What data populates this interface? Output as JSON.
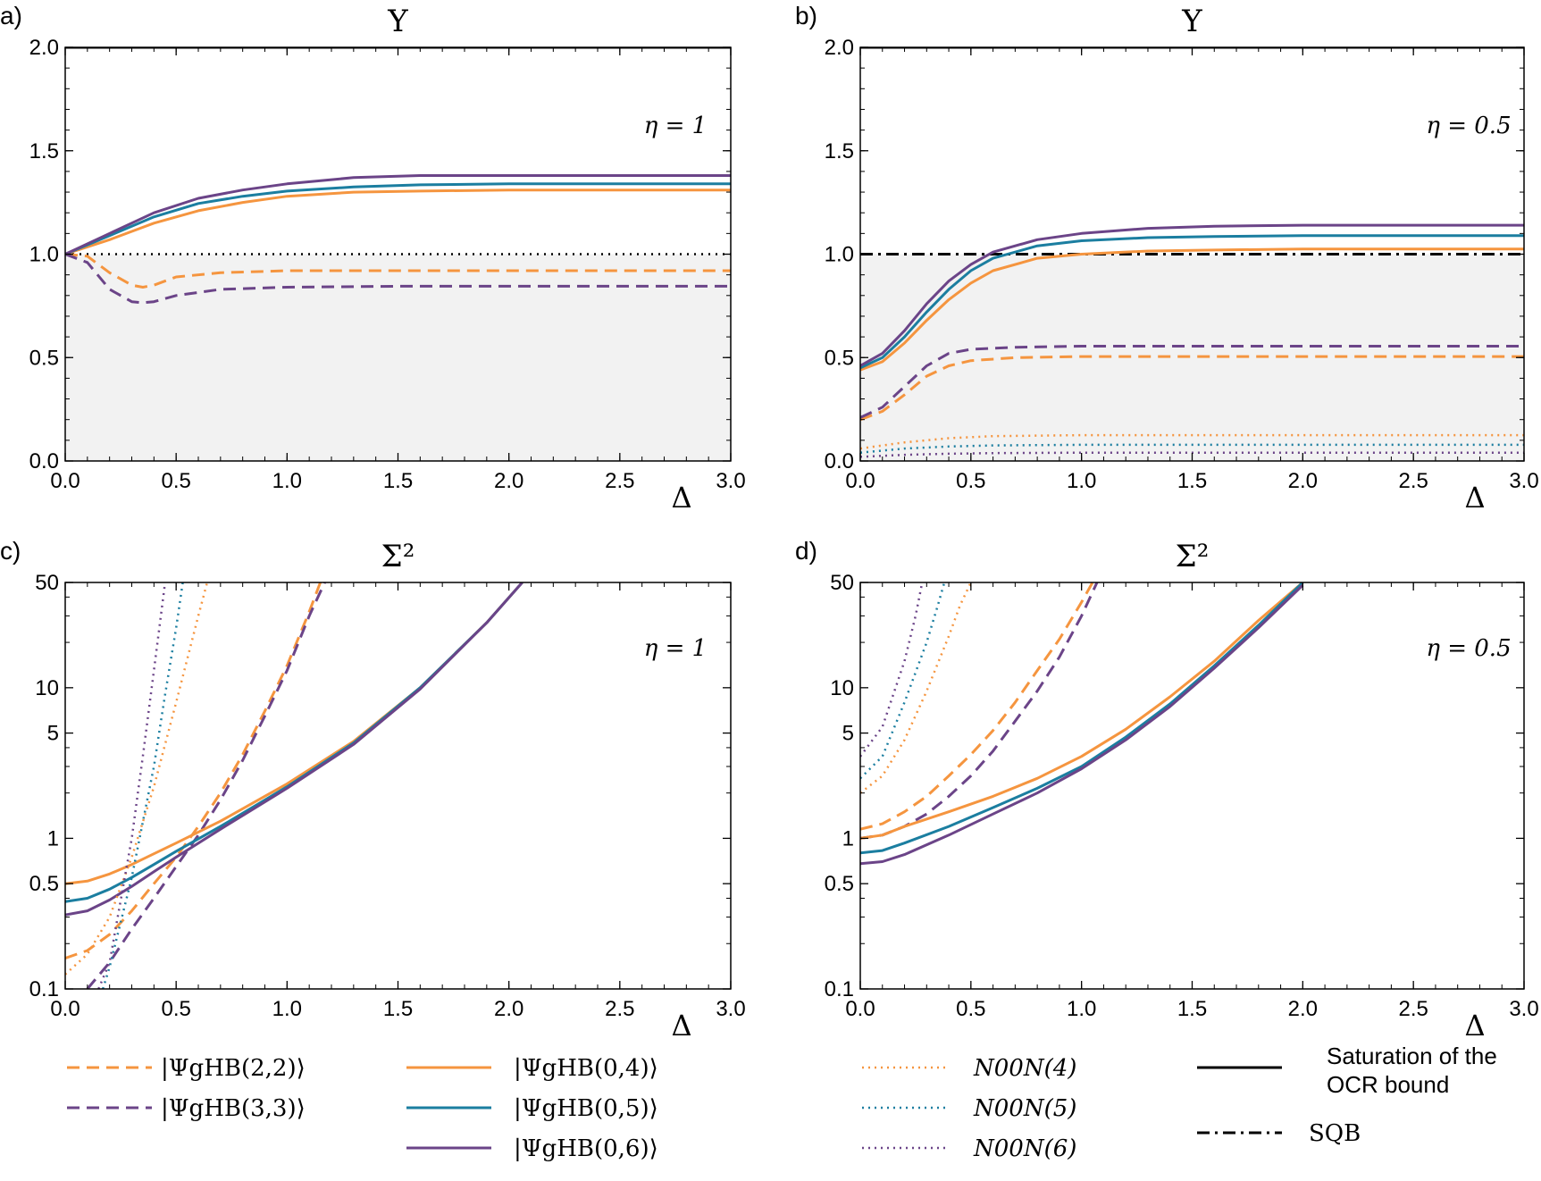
{
  "colors": {
    "orange": "#F5953F",
    "teal": "#1B7EA0",
    "purple": "#6B4488",
    "black": "#000000",
    "shade": "#F2F2F2"
  },
  "legend": {
    "items": [
      {
        "label": "|ΨgHB(2,2)⟩",
        "color": "orange",
        "style": "dashed"
      },
      {
        "label": "|ΨgHB(3,3)⟩",
        "color": "purple",
        "style": "dashed"
      },
      {
        "label": "|ΨgHB(0,4)⟩",
        "color": "orange",
        "style": "solid"
      },
      {
        "label": "|ΨgHB(0,5)⟩",
        "color": "teal",
        "style": "solid"
      },
      {
        "label": "|ΨgHB(0,6)⟩",
        "color": "purple",
        "style": "solid"
      },
      {
        "label": "N00N(4)",
        "color": "orange",
        "style": "dotted"
      },
      {
        "label": "N00N(5)",
        "color": "teal",
        "style": "dotted"
      },
      {
        "label": "N00N(6)",
        "color": "purple",
        "style": "dotted"
      },
      {
        "label": "Saturation of the OCR bound",
        "color": "black",
        "style": "solid"
      },
      {
        "label": "SQB",
        "color": "black",
        "style": "dashdot"
      }
    ]
  },
  "chart_data": [
    {
      "panel": "a)",
      "type": "line",
      "title": "Υ",
      "annotation": "η = 1",
      "xlabel": "Δ",
      "xlim": [
        0,
        3
      ],
      "ylim": [
        0,
        2.0
      ],
      "yscale": "linear",
      "xticks": [
        "0.0",
        "0.5",
        "1.0",
        "1.5",
        "2.0",
        "2.5",
        "3.0"
      ],
      "yticks": [
        "0.0",
        "0.5",
        "1.0",
        "1.5",
        "2.0"
      ],
      "shaded_region_y": [
        0,
        1.0
      ],
      "hlines": [
        {
          "y": 2.0,
          "color": "black",
          "style": "solid"
        },
        {
          "y": 1.0,
          "color": "black",
          "style": "dotted"
        }
      ],
      "series": [
        {
          "legend": 0,
          "x": [
            0,
            0.1,
            0.2,
            0.3,
            0.35,
            0.4,
            0.5,
            0.7,
            1.0,
            1.5,
            2.0,
            3.0
          ],
          "y": [
            1.0,
            0.99,
            0.91,
            0.85,
            0.84,
            0.85,
            0.89,
            0.91,
            0.92,
            0.92,
            0.92,
            0.92
          ]
        },
        {
          "legend": 1,
          "x": [
            0,
            0.1,
            0.2,
            0.3,
            0.35,
            0.4,
            0.5,
            0.7,
            1.0,
            1.5,
            2.0,
            3.0
          ],
          "y": [
            1.0,
            0.96,
            0.83,
            0.77,
            0.765,
            0.77,
            0.8,
            0.83,
            0.84,
            0.845,
            0.845,
            0.845
          ]
        },
        {
          "legend": 2,
          "x": [
            0,
            0.2,
            0.4,
            0.6,
            0.8,
            1.0,
            1.3,
            1.6,
            2.0,
            3.0
          ],
          "y": [
            1.0,
            1.07,
            1.15,
            1.21,
            1.25,
            1.28,
            1.3,
            1.305,
            1.31,
            1.31
          ]
        },
        {
          "legend": 3,
          "x": [
            0,
            0.2,
            0.4,
            0.6,
            0.8,
            1.0,
            1.3,
            1.6,
            2.0,
            3.0
          ],
          "y": [
            1.0,
            1.09,
            1.18,
            1.245,
            1.28,
            1.305,
            1.325,
            1.335,
            1.34,
            1.34
          ]
        },
        {
          "legend": 4,
          "x": [
            0,
            0.2,
            0.4,
            0.6,
            0.8,
            1.0,
            1.3,
            1.6,
            2.0,
            3.0
          ],
          "y": [
            1.0,
            1.1,
            1.2,
            1.27,
            1.31,
            1.34,
            1.37,
            1.38,
            1.38,
            1.38
          ]
        }
      ]
    },
    {
      "panel": "b)",
      "type": "line",
      "title": "Υ",
      "annotation": "η = 0.5",
      "xlabel": "Δ",
      "xlim": [
        0,
        3
      ],
      "ylim": [
        0,
        2.0
      ],
      "yscale": "linear",
      "xticks": [
        "0.0",
        "0.5",
        "1.0",
        "1.5",
        "2.0",
        "2.5",
        "3.0"
      ],
      "yticks": [
        "0.0",
        "0.5",
        "1.0",
        "1.5",
        "2.0"
      ],
      "shaded_region_y": [
        0,
        1.0
      ],
      "hlines": [
        {
          "y": 2.0,
          "color": "black",
          "style": "solid"
        },
        {
          "y": 1.0,
          "color": "black",
          "style": "dashdot"
        }
      ],
      "series": [
        {
          "legend": 0,
          "x": [
            0,
            0.1,
            0.2,
            0.3,
            0.4,
            0.5,
            0.7,
            1.0,
            1.5,
            3.0
          ],
          "y": [
            0.2,
            0.24,
            0.32,
            0.41,
            0.46,
            0.485,
            0.5,
            0.505,
            0.505,
            0.505
          ]
        },
        {
          "legend": 1,
          "x": [
            0,
            0.1,
            0.2,
            0.3,
            0.4,
            0.5,
            0.7,
            1.0,
            1.5,
            3.0
          ],
          "y": [
            0.21,
            0.26,
            0.36,
            0.46,
            0.52,
            0.54,
            0.55,
            0.555,
            0.555,
            0.555
          ]
        },
        {
          "legend": 2,
          "x": [
            0,
            0.1,
            0.2,
            0.3,
            0.4,
            0.5,
            0.6,
            0.8,
            1.0,
            1.3,
            1.6,
            2.0,
            3.0
          ],
          "y": [
            0.44,
            0.48,
            0.57,
            0.68,
            0.78,
            0.86,
            0.92,
            0.98,
            1.0,
            1.015,
            1.02,
            1.025,
            1.025
          ]
        },
        {
          "legend": 3,
          "x": [
            0,
            0.1,
            0.2,
            0.3,
            0.4,
            0.5,
            0.6,
            0.8,
            1.0,
            1.3,
            1.6,
            2.0,
            3.0
          ],
          "y": [
            0.45,
            0.5,
            0.6,
            0.72,
            0.83,
            0.92,
            0.98,
            1.04,
            1.065,
            1.08,
            1.085,
            1.09,
            1.09
          ]
        },
        {
          "legend": 4,
          "x": [
            0,
            0.1,
            0.2,
            0.3,
            0.4,
            0.5,
            0.6,
            0.8,
            1.0,
            1.3,
            1.6,
            2.0,
            3.0
          ],
          "y": [
            0.46,
            0.52,
            0.63,
            0.76,
            0.87,
            0.95,
            1.01,
            1.07,
            1.1,
            1.125,
            1.135,
            1.14,
            1.14
          ]
        },
        {
          "legend": 5,
          "x": [
            0,
            0.2,
            0.4,
            0.6,
            1.0,
            2.0,
            3.0
          ],
          "y": [
            0.06,
            0.09,
            0.11,
            0.12,
            0.125,
            0.125,
            0.125
          ]
        },
        {
          "legend": 6,
          "x": [
            0,
            0.2,
            0.4,
            0.6,
            1.0,
            2.0,
            3.0
          ],
          "y": [
            0.04,
            0.06,
            0.07,
            0.075,
            0.078,
            0.078,
            0.078
          ]
        },
        {
          "legend": 7,
          "x": [
            0,
            0.2,
            0.4,
            0.6,
            1.0,
            2.0,
            3.0
          ],
          "y": [
            0.02,
            0.03,
            0.035,
            0.038,
            0.04,
            0.04,
            0.04
          ]
        }
      ]
    },
    {
      "panel": "c)",
      "type": "line",
      "title": "Σ²",
      "annotation": "η = 1",
      "xlabel": "Δ",
      "xlim": [
        0,
        3
      ],
      "ylim": [
        0.1,
        50
      ],
      "yscale": "log",
      "xticks": [
        "0.0",
        "0.5",
        "1.0",
        "1.5",
        "2.0",
        "2.5",
        "3.0"
      ],
      "yticks": [
        "0.1",
        "0.5",
        "1",
        "5",
        "10",
        "50"
      ],
      "series": [
        {
          "legend": 0,
          "x": [
            0,
            0.1,
            0.2,
            0.3,
            0.4,
            0.5,
            0.6,
            0.7,
            0.8,
            0.9,
            1.0,
            1.1,
            1.15
          ],
          "y": [
            0.16,
            0.18,
            0.23,
            0.33,
            0.5,
            0.75,
            1.2,
            2.0,
            3.6,
            7,
            14,
            32,
            50
          ]
        },
        {
          "legend": 1,
          "x": [
            0.1,
            0.2,
            0.3,
            0.4,
            0.5,
            0.6,
            0.7,
            0.8,
            0.9,
            1.0,
            1.1,
            1.17
          ],
          "y": [
            0.1,
            0.15,
            0.25,
            0.4,
            0.65,
            1.05,
            1.8,
            3.3,
            6.5,
            13,
            30,
            50
          ]
        },
        {
          "legend": 2,
          "x": [
            0,
            0.1,
            0.2,
            0.3,
            0.4,
            0.5,
            0.7,
            1.0,
            1.3,
            1.6,
            1.9,
            2.06
          ],
          "y": [
            0.5,
            0.52,
            0.58,
            0.67,
            0.79,
            0.93,
            1.3,
            2.3,
            4.4,
            10,
            27,
            50
          ]
        },
        {
          "legend": 3,
          "x": [
            0,
            0.1,
            0.2,
            0.3,
            0.4,
            0.5,
            0.7,
            1.0,
            1.3,
            1.6,
            1.9,
            2.06
          ],
          "y": [
            0.38,
            0.4,
            0.46,
            0.55,
            0.67,
            0.82,
            1.2,
            2.2,
            4.3,
            10,
            27,
            50
          ]
        },
        {
          "legend": 4,
          "x": [
            0,
            0.1,
            0.2,
            0.3,
            0.4,
            0.5,
            0.7,
            1.0,
            1.3,
            1.6,
            1.9,
            2.06
          ],
          "y": [
            0.31,
            0.33,
            0.39,
            0.48,
            0.6,
            0.75,
            1.15,
            2.15,
            4.2,
            9.8,
            27,
            50
          ]
        },
        {
          "legend": 5,
          "x": [
            0,
            0.1,
            0.2,
            0.3,
            0.4,
            0.5,
            0.6,
            0.64
          ],
          "y": [
            0.125,
            0.17,
            0.3,
            0.75,
            2.2,
            8,
            30,
            50
          ]
        },
        {
          "legend": 6,
          "x": [
            0.17,
            0.2,
            0.3,
            0.4,
            0.45,
            0.5,
            0.53
          ],
          "y": [
            0.1,
            0.14,
            0.55,
            3,
            9,
            25,
            50
          ]
        },
        {
          "legend": 7,
          "x": [
            0.15,
            0.2,
            0.3,
            0.35,
            0.4,
            0.45
          ],
          "y": [
            0.1,
            0.15,
            1.0,
            3.5,
            13,
            50
          ]
        }
      ]
    },
    {
      "panel": "d)",
      "type": "line",
      "title": "Σ²",
      "annotation": "η = 0.5",
      "xlabel": "Δ",
      "xlim": [
        0,
        3
      ],
      "ylim": [
        0.1,
        50
      ],
      "yscale": "log",
      "xticks": [
        "0.0",
        "0.5",
        "1.0",
        "1.5",
        "2.0",
        "2.5",
        "3.0"
      ],
      "yticks": [
        "0.1",
        "0.5",
        "1",
        "5",
        "10",
        "50"
      ],
      "series": [
        {
          "legend": 0,
          "x": [
            0,
            0.1,
            0.2,
            0.3,
            0.4,
            0.5,
            0.6,
            0.7,
            0.8,
            0.9,
            1.0,
            1.05
          ],
          "y": [
            1.15,
            1.25,
            1.5,
            1.9,
            2.6,
            3.6,
            5.2,
            8,
            13,
            21,
            37,
            50
          ]
        },
        {
          "legend": 1,
          "x": [
            0,
            0.1,
            0.2,
            0.3,
            0.4,
            0.5,
            0.6,
            0.7,
            0.8,
            0.9,
            1.0,
            1.07
          ],
          "y": [
            1.0,
            1.05,
            1.2,
            1.45,
            1.9,
            2.6,
            3.8,
            6,
            9.5,
            16,
            30,
            50
          ]
        },
        {
          "legend": 2,
          "x": [
            0,
            0.1,
            0.2,
            0.4,
            0.6,
            0.8,
            1.0,
            1.2,
            1.4,
            1.6,
            1.8,
            2.0
          ],
          "y": [
            1.0,
            1.05,
            1.2,
            1.5,
            1.9,
            2.5,
            3.5,
            5.3,
            8.7,
            15,
            28,
            53
          ]
        },
        {
          "legend": 3,
          "x": [
            0,
            0.1,
            0.2,
            0.4,
            0.6,
            0.8,
            1.0,
            1.2,
            1.4,
            1.6,
            1.8,
            2.0
          ],
          "y": [
            0.8,
            0.83,
            0.93,
            1.2,
            1.6,
            2.15,
            3.0,
            4.7,
            7.8,
            14,
            26,
            50
          ]
        },
        {
          "legend": 4,
          "x": [
            0,
            0.1,
            0.2,
            0.4,
            0.6,
            0.8,
            1.0,
            1.2,
            1.4,
            1.6,
            1.8,
            2.0
          ],
          "y": [
            0.68,
            0.7,
            0.78,
            1.05,
            1.45,
            2.0,
            2.9,
            4.5,
            7.5,
            13.5,
            25,
            48
          ]
        },
        {
          "legend": 5,
          "x": [
            0,
            0.1,
            0.2,
            0.3,
            0.4,
            0.45,
            0.5
          ],
          "y": [
            2.0,
            2.6,
            4.5,
            9.5,
            22,
            35,
            50
          ]
        },
        {
          "legend": 6,
          "x": [
            0,
            0.1,
            0.2,
            0.3,
            0.35,
            0.38
          ],
          "y": [
            2.5,
            3.5,
            8,
            20,
            35,
            50
          ]
        },
        {
          "legend": 7,
          "x": [
            0,
            0.1,
            0.2,
            0.25,
            0.28
          ],
          "y": [
            3.5,
            5.5,
            15,
            30,
            50
          ]
        }
      ]
    }
  ]
}
